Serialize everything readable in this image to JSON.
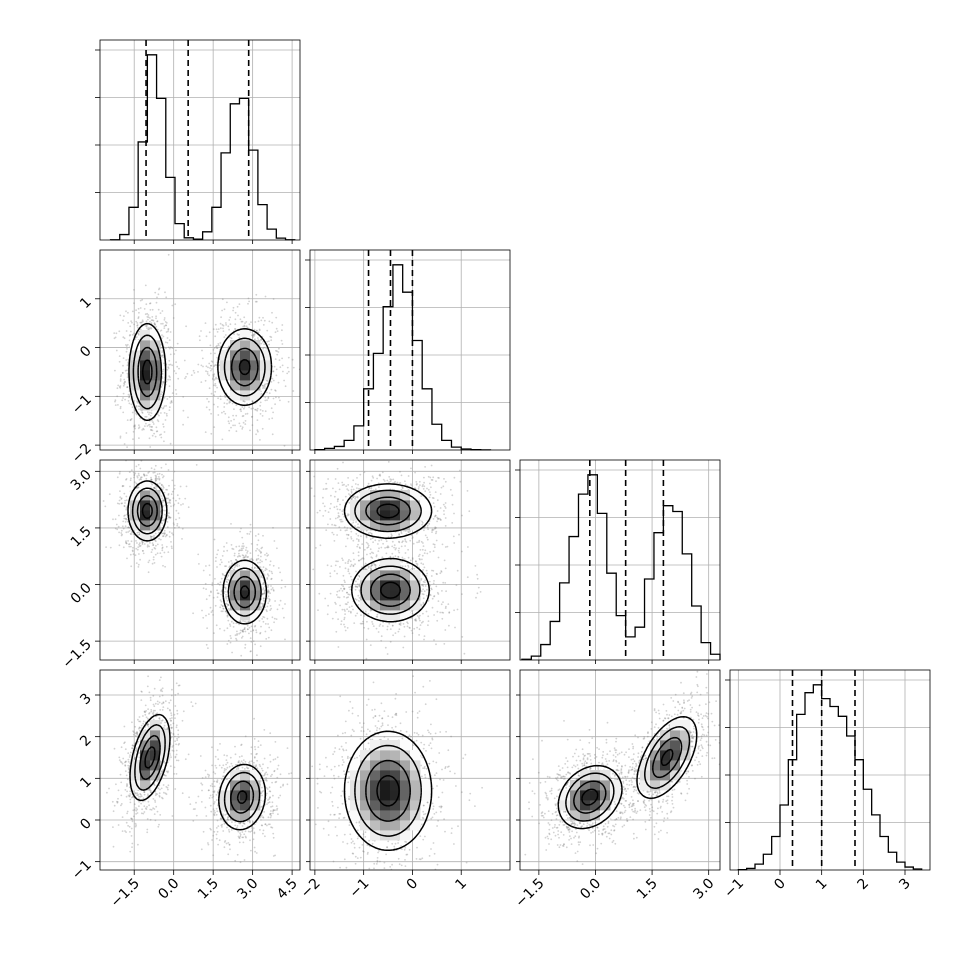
{
  "chart_data": {
    "type": "corner",
    "n_params": 4,
    "params": [
      {
        "ticks": [
          -1.5,
          0.0,
          1.5,
          3.0,
          4.5
        ],
        "tick_labels": [
          "−1.5",
          "0.0",
          "1.5",
          "3.0",
          "4.5"
        ],
        "range": [
          -2.8,
          4.8
        ],
        "quantiles": [
          -1.05,
          0.55,
          2.85
        ],
        "hist": {
          "edges": [
            -2.4,
            -2.05,
            -1.7,
            -1.35,
            -1.0,
            -0.65,
            -0.3,
            0.05,
            0.4,
            0.75,
            1.1,
            1.45,
            1.8,
            2.15,
            2.5,
            2.85,
            3.2,
            3.55,
            3.9,
            4.25,
            4.6
          ],
          "counts": [
            1,
            20,
            120,
            360,
            680,
            520,
            230,
            60,
            8,
            3,
            30,
            120,
            320,
            500,
            520,
            330,
            130,
            40,
            7,
            1
          ]
        }
      },
      {
        "ticks": [
          -2,
          -1,
          0,
          1
        ],
        "tick_labels": [
          "−2",
          "−1",
          "0",
          "1"
        ],
        "range": [
          -2.1,
          2.0
        ],
        "quantiles": [
          -0.9,
          -0.45,
          0.0
        ],
        "hist": {
          "edges": [
            -2.0,
            -1.8,
            -1.6,
            -1.4,
            -1.2,
            -1.0,
            -0.8,
            -0.6,
            -0.4,
            -0.2,
            0.0,
            0.2,
            0.4,
            0.6,
            0.8,
            1.0,
            1.2,
            1.4,
            1.6
          ],
          "counts": [
            2,
            10,
            22,
            60,
            150,
            380,
            600,
            890,
            1150,
            980,
            680,
            380,
            160,
            60,
            18,
            6,
            2,
            1
          ]
        }
      },
      {
        "ticks": [
          -1.5,
          0.0,
          1.5,
          3.0
        ],
        "tick_labels": [
          "−1.5",
          "0.0",
          "1.5",
          "3.0"
        ],
        "range": [
          -2.0,
          3.3
        ],
        "quantiles": [
          -0.15,
          0.8,
          1.8
        ],
        "hist": {
          "edges": [
            -1.95,
            -1.7,
            -1.45,
            -1.2,
            -0.95,
            -0.7,
            -0.45,
            -0.2,
            0.05,
            0.3,
            0.55,
            0.8,
            1.05,
            1.3,
            1.55,
            1.8,
            2.05,
            2.3,
            2.55,
            2.8,
            3.05,
            3.3
          ],
          "counts": [
            4,
            20,
            80,
            200,
            400,
            640,
            860,
            960,
            760,
            450,
            230,
            120,
            170,
            420,
            660,
            800,
            770,
            550,
            280,
            90,
            30
          ]
        }
      },
      {
        "ticks": [
          -1,
          0,
          1,
          2,
          3
        ],
        "tick_labels": [
          "−1",
          "0",
          "1",
          "2",
          "3"
        ],
        "range": [
          -1.2,
          3.6
        ],
        "quantiles": [
          0.3,
          1.0,
          1.8
        ],
        "hist": {
          "edges": [
            -1.0,
            -0.8,
            -0.6,
            -0.4,
            -0.2,
            0.0,
            0.2,
            0.4,
            0.6,
            0.8,
            1.0,
            1.2,
            1.4,
            1.6,
            1.8,
            2.0,
            2.2,
            2.4,
            2.6,
            2.8,
            3.0,
            3.2,
            3.4
          ],
          "counts": [
            2,
            8,
            30,
            80,
            170,
            330,
            560,
            790,
            900,
            940,
            870,
            830,
            780,
            680,
            560,
            410,
            280,
            170,
            90,
            40,
            15,
            5
          ]
        }
      }
    ],
    "pairs": [
      {
        "x": 0,
        "y": 1,
        "clusters": [
          {
            "mean": [
              -1.0,
              -0.5
            ],
            "sd": [
              0.35,
              0.5
            ],
            "rho": 0.0,
            "peak": 1.0
          },
          {
            "mean": [
              2.7,
              -0.4
            ],
            "sd": [
              0.52,
              0.4
            ],
            "rho": 0.0,
            "peak": 0.95
          }
        ]
      },
      {
        "x": 0,
        "y": 2,
        "clusters": [
          {
            "mean": [
              -1.0,
              1.95
            ],
            "sd": [
              0.37,
              0.4
            ],
            "rho": 0.0,
            "peak": 1.0
          },
          {
            "mean": [
              2.7,
              -0.2
            ],
            "sd": [
              0.42,
              0.43
            ],
            "rho": 0.0,
            "peak": 0.95
          }
        ]
      },
      {
        "x": 0,
        "y": 3,
        "clusters": [
          {
            "mean": [
              -0.9,
              1.5
            ],
            "sd": [
              0.38,
              0.52
            ],
            "rho": 0.45,
            "peak": 1.0
          },
          {
            "mean": [
              2.6,
              0.55
            ],
            "sd": [
              0.45,
              0.4
            ],
            "rho": 0.1,
            "peak": 0.95
          }
        ]
      },
      {
        "x": 1,
        "y": 2,
        "clusters": [
          {
            "mean": [
              -0.5,
              1.95
            ],
            "sd": [
              0.45,
              0.36
            ],
            "rho": 0.0,
            "peak": 1.0
          },
          {
            "mean": [
              -0.45,
              -0.15
            ],
            "sd": [
              0.4,
              0.42
            ],
            "rho": 0.0,
            "peak": 1.0
          }
        ]
      },
      {
        "x": 1,
        "y": 3,
        "clusters": [
          {
            "mean": [
              -0.5,
              0.7
            ],
            "sd": [
              0.45,
              0.72
            ],
            "rho": 0.0,
            "peak": 1.0
          }
        ]
      },
      {
        "x": 2,
        "y": 3,
        "clusters": [
          {
            "mean": [
              -0.15,
              0.55
            ],
            "sd": [
              0.42,
              0.38
            ],
            "rho": 0.25,
            "peak": 1.0
          },
          {
            "mean": [
              1.9,
              1.5
            ],
            "sd": [
              0.4,
              0.5
            ],
            "rho": 0.55,
            "peak": 0.95
          }
        ]
      }
    ]
  }
}
